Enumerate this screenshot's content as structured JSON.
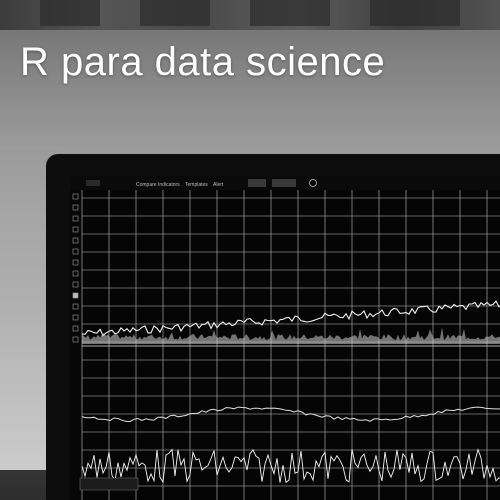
{
  "title": "R para data science",
  "toolbar": {
    "items": [
      "Compare",
      "Indicators",
      "Templates",
      "Alert"
    ]
  },
  "colors": {
    "title_text": "#ffffff",
    "screen_bg": "#050505",
    "grid": "#d9d9d9",
    "line": "#f2f2f2"
  },
  "icons": [
    "cursor-icon",
    "line-tool-icon",
    "text-tool-icon",
    "ruler-icon",
    "zoom-icon",
    "lock-icon",
    "eye-icon",
    "trash-icon"
  ]
}
